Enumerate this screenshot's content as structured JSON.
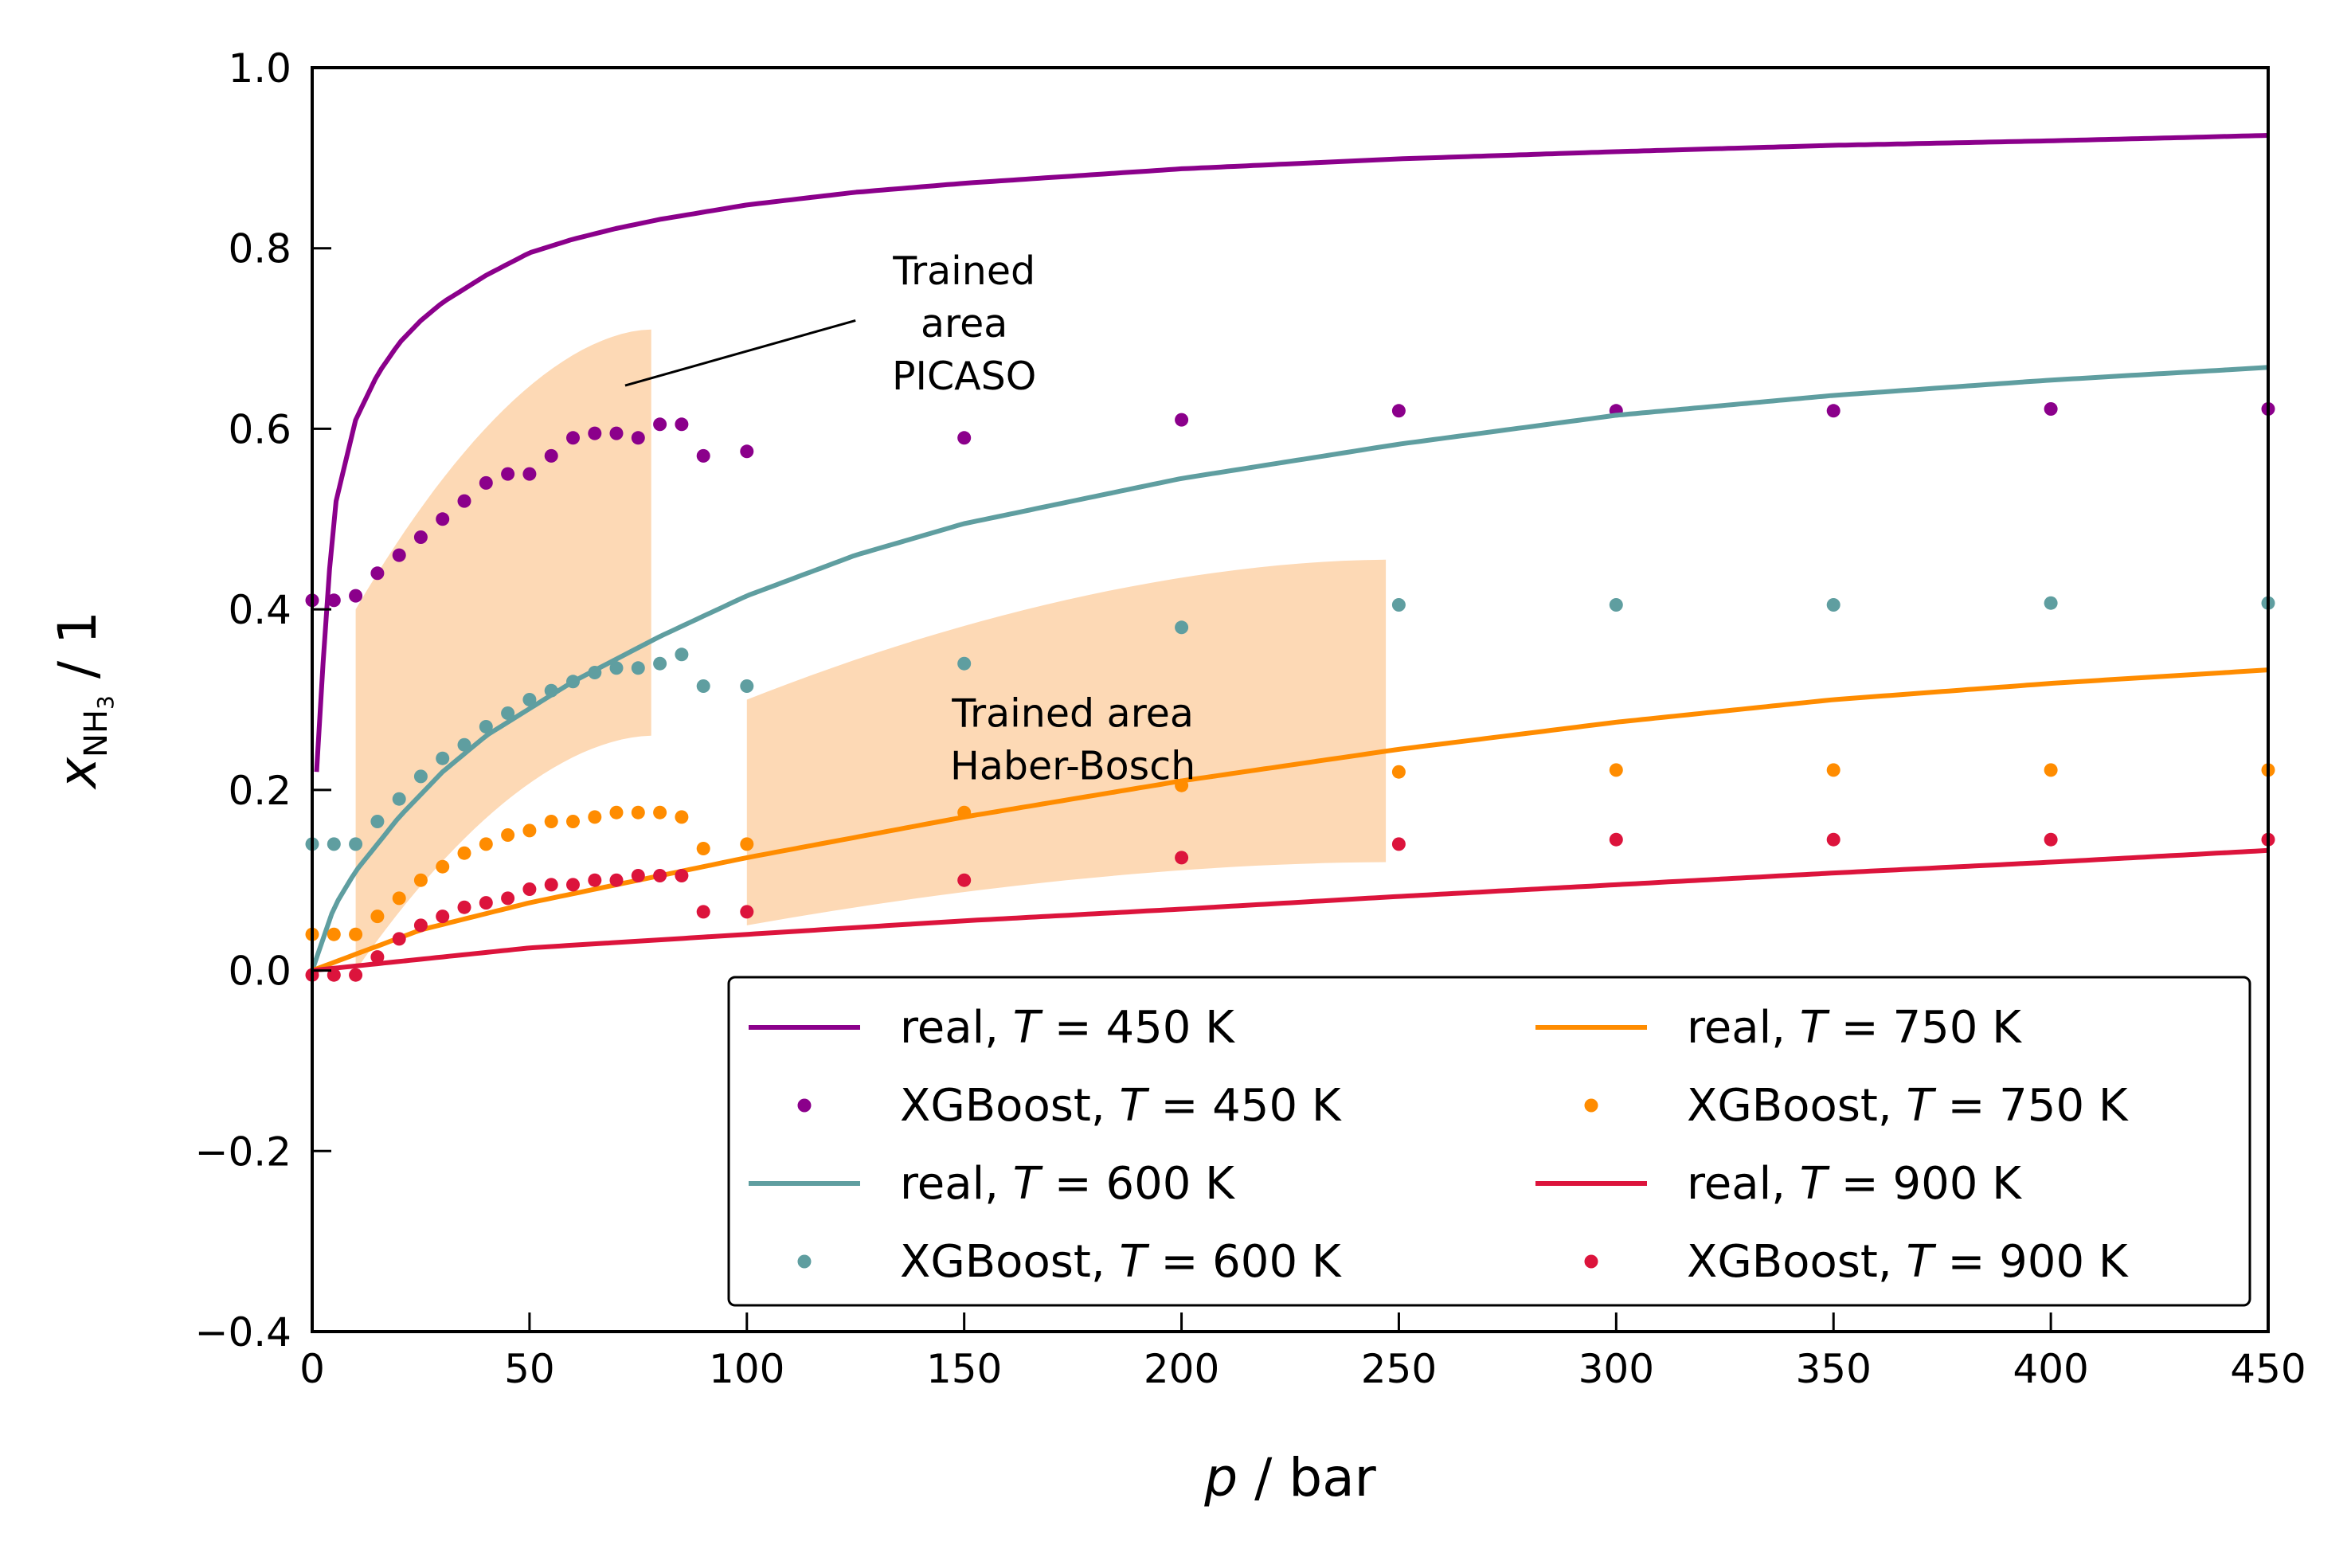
{
  "chart_data": {
    "type": "line",
    "xlabel": {
      "var": "p",
      "rest": " / bar"
    },
    "ylabel": {
      "var": "x",
      "sub": "NH",
      "subsub": "3",
      "rest": " / 1"
    },
    "xlim": [
      0,
      450
    ],
    "ylim": [
      -0.4,
      1.0
    ],
    "xticks": [
      0,
      50,
      100,
      150,
      200,
      250,
      300,
      350,
      400,
      450
    ],
    "xtick_labels": [
      "0",
      "50",
      "100",
      "150",
      "200",
      "250",
      "300",
      "350",
      "400",
      "450"
    ],
    "yticks": [
      -0.4,
      -0.2,
      0.0,
      0.2,
      0.4,
      0.6,
      0.8,
      1.0
    ],
    "ytick_labels": [
      "−0.4",
      "−0.2",
      "0.0",
      "0.2",
      "0.4",
      "0.6",
      "0.8",
      "1.0"
    ],
    "grid": false,
    "legend_position": "lower-right",
    "legend_columns": 2,
    "colors": {
      "t450": "#8B008B",
      "t600": "#5F9EA0",
      "t750": "#FF8C00",
      "t900": "#DC143C",
      "shade": "#FDD9B5"
    },
    "annotations": [
      {
        "lines": [
          "Trained",
          "area",
          "PICASO"
        ]
      },
      {
        "lines": [
          "Trained area",
          "Haber-Bosch"
        ]
      }
    ],
    "shaded_regions": [
      {
        "name": "Trained area PICASO",
        "x_start": 10,
        "x_end": 78,
        "lower": [
          0.0,
          0.26
        ],
        "upper": [
          0.4,
          0.71
        ]
      },
      {
        "name": "Trained area Haber-Bosch",
        "x_start": 100,
        "x_end": 247,
        "lower": [
          0.05,
          0.12
        ],
        "upper": [
          0.3,
          0.455
        ]
      }
    ],
    "series": [
      {
        "name": "real",
        "T": "450",
        "kind": "line",
        "color": "#8B008B",
        "x": [
          1,
          3,
          5,
          8,
          10,
          15,
          20,
          25,
          30,
          40,
          50,
          60,
          70,
          80,
          100,
          125,
          150,
          200,
          250,
          300,
          350,
          400,
          450
        ],
        "y": [
          0.22,
          0.38,
          0.51,
          0.57,
          0.61,
          0.66,
          0.695,
          0.72,
          0.74,
          0.77,
          0.795,
          0.81,
          0.822,
          0.832,
          0.848,
          0.862,
          0.872,
          0.888,
          0.899,
          0.907,
          0.914,
          0.919,
          0.925
        ]
      },
      {
        "name": "XGBoost",
        "T": "450",
        "kind": "points",
        "color": "#8B008B",
        "x": [
          0,
          5,
          10,
          15,
          20,
          25,
          30,
          35,
          40,
          45,
          50,
          55,
          60,
          65,
          70,
          75,
          80,
          85,
          90,
          100,
          150,
          200,
          250,
          300,
          350,
          400,
          450
        ],
        "y": [
          0.41,
          0.41,
          0.415,
          0.44,
          0.46,
          0.48,
          0.5,
          0.52,
          0.54,
          0.55,
          0.55,
          0.57,
          0.59,
          0.595,
          0.595,
          0.59,
          0.605,
          0.605,
          0.57,
          0.575,
          0.59,
          0.61,
          0.62,
          0.62,
          0.62,
          0.622,
          0.622
        ]
      },
      {
        "name": "real",
        "T": "600",
        "kind": "line",
        "color": "#5F9EA0",
        "x": [
          0,
          5,
          10,
          20,
          30,
          40,
          50,
          60,
          80,
          100,
          125,
          150,
          200,
          250,
          300,
          350,
          400,
          450
        ],
        "y": [
          0.0,
          0.07,
          0.11,
          0.17,
          0.22,
          0.26,
          0.29,
          0.32,
          0.37,
          0.415,
          0.46,
          0.495,
          0.545,
          0.583,
          0.615,
          0.637,
          0.654,
          0.668
        ]
      },
      {
        "name": "XGBoost",
        "T": "600",
        "kind": "points",
        "color": "#5F9EA0",
        "x": [
          0,
          5,
          10,
          15,
          20,
          25,
          30,
          35,
          40,
          45,
          50,
          55,
          60,
          65,
          70,
          75,
          80,
          85,
          90,
          100,
          150,
          200,
          250,
          300,
          350,
          400,
          450
        ],
        "y": [
          0.14,
          0.14,
          0.14,
          0.165,
          0.19,
          0.215,
          0.235,
          0.25,
          0.27,
          0.285,
          0.3,
          0.31,
          0.32,
          0.33,
          0.335,
          0.335,
          0.34,
          0.35,
          0.315,
          0.315,
          0.34,
          0.38,
          0.405,
          0.405,
          0.405,
          0.407,
          0.407
        ]
      },
      {
        "name": "real",
        "T": "750",
        "kind": "line",
        "color": "#FF8C00",
        "x": [
          0,
          25,
          50,
          75,
          100,
          150,
          200,
          250,
          300,
          350,
          400,
          450
        ],
        "y": [
          0.0,
          0.045,
          0.075,
          0.1,
          0.125,
          0.17,
          0.21,
          0.245,
          0.275,
          0.3,
          0.318,
          0.333
        ]
      },
      {
        "name": "XGBoost",
        "T": "750",
        "kind": "points",
        "color": "#FF8C00",
        "x": [
          0,
          5,
          10,
          15,
          20,
          25,
          30,
          35,
          40,
          45,
          50,
          55,
          60,
          65,
          70,
          75,
          80,
          85,
          90,
          100,
          150,
          200,
          250,
          300,
          350,
          400,
          450
        ],
        "y": [
          0.04,
          0.04,
          0.04,
          0.06,
          0.08,
          0.1,
          0.115,
          0.13,
          0.14,
          0.15,
          0.155,
          0.165,
          0.165,
          0.17,
          0.175,
          0.175,
          0.175,
          0.17,
          0.135,
          0.14,
          0.175,
          0.205,
          0.22,
          0.222,
          0.222,
          0.222,
          0.222
        ]
      },
      {
        "name": "real",
        "T": "900",
        "kind": "line",
        "color": "#DC143C",
        "x": [
          0,
          50,
          100,
          150,
          200,
          250,
          300,
          350,
          400,
          450
        ],
        "y": [
          0.0,
          0.025,
          0.04,
          0.055,
          0.068,
          0.082,
          0.095,
          0.108,
          0.12,
          0.133
        ]
      },
      {
        "name": "XGBoost",
        "T": "900",
        "kind": "points",
        "color": "#DC143C",
        "x": [
          0,
          5,
          10,
          15,
          20,
          25,
          30,
          35,
          40,
          45,
          50,
          55,
          60,
          65,
          70,
          75,
          80,
          85,
          90,
          100,
          150,
          200,
          250,
          300,
          350,
          400,
          450
        ],
        "y": [
          -0.005,
          -0.005,
          -0.005,
          0.015,
          0.035,
          0.05,
          0.06,
          0.07,
          0.075,
          0.08,
          0.09,
          0.095,
          0.095,
          0.1,
          0.1,
          0.105,
          0.105,
          0.105,
          0.065,
          0.065,
          0.1,
          0.125,
          0.14,
          0.145,
          0.145,
          0.145,
          0.145
        ]
      }
    ],
    "legend": [
      {
        "series_index": 0,
        "prefix": "real, ",
        "var": "T",
        "suffix": " = 450 K"
      },
      {
        "series_index": 4,
        "prefix": "real, ",
        "var": "T",
        "suffix": " = 750 K"
      },
      {
        "series_index": 1,
        "prefix": "XGBoost, ",
        "var": "T",
        "suffix": " = 450 K"
      },
      {
        "series_index": 5,
        "prefix": "XGBoost, ",
        "var": "T",
        "suffix": " = 750 K"
      },
      {
        "series_index": 2,
        "prefix": "real, ",
        "var": "T",
        "suffix": " = 600 K"
      },
      {
        "series_index": 6,
        "prefix": "real, ",
        "var": "T",
        "suffix": " = 900 K"
      },
      {
        "series_index": 3,
        "prefix": "XGBoost, ",
        "var": "T",
        "suffix": " = 600 K"
      },
      {
        "series_index": 7,
        "prefix": "XGBoost, ",
        "var": "T",
        "suffix": " = 900 K"
      }
    ]
  }
}
